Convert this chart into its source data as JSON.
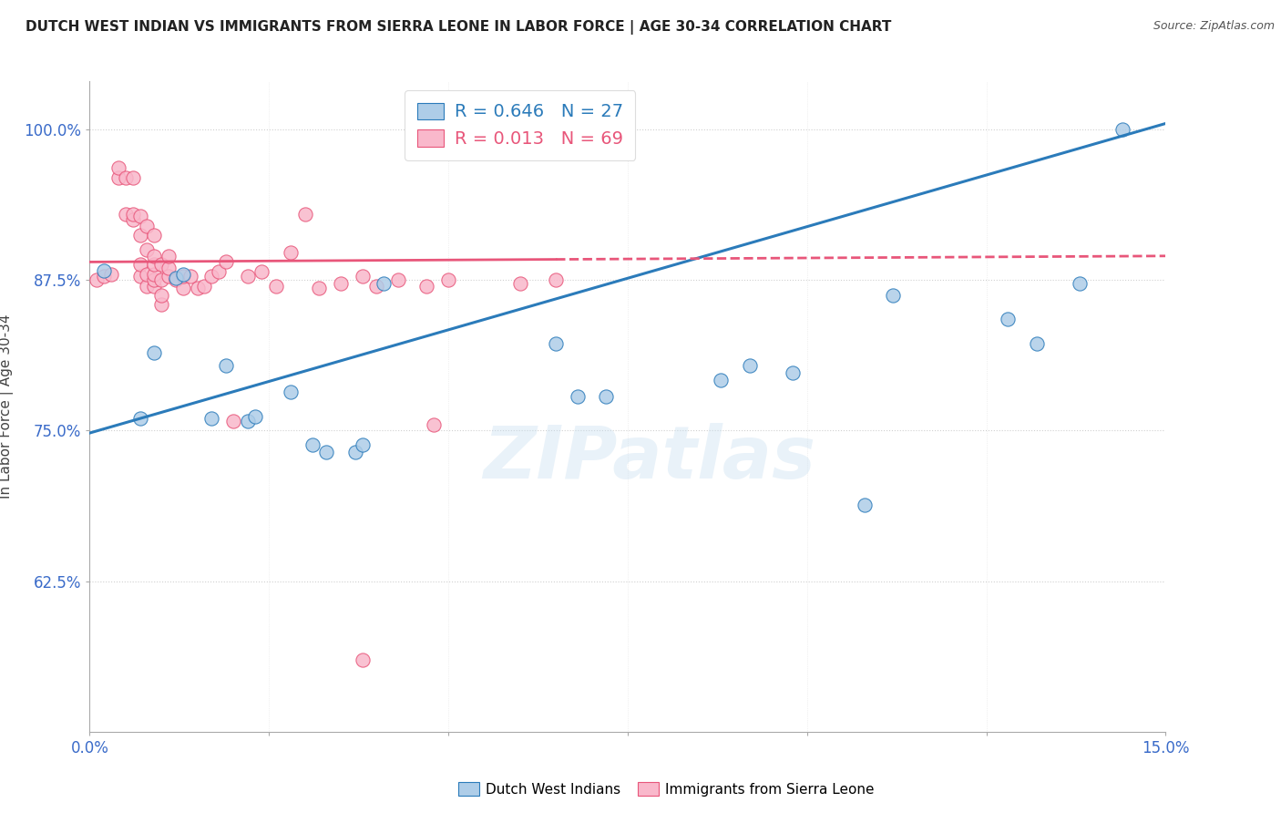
{
  "title": "DUTCH WEST INDIAN VS IMMIGRANTS FROM SIERRA LEONE IN LABOR FORCE | AGE 30-34 CORRELATION CHART",
  "source": "Source: ZipAtlas.com",
  "ylabel_label": "In Labor Force | Age 30-34",
  "xmin": 0.0,
  "xmax": 0.15,
  "ymin": 0.5,
  "ymax": 1.04,
  "yticks": [
    0.625,
    0.75,
    0.875,
    1.0
  ],
  "ytick_labels": [
    "62.5%",
    "75.0%",
    "87.5%",
    "100.0%"
  ],
  "xticks": [
    0.0,
    0.025,
    0.05,
    0.075,
    0.1,
    0.125,
    0.15
  ],
  "xtick_labels": [
    "0.0%",
    "",
    "",
    "",
    "",
    "",
    "15.0%"
  ],
  "blue_R": 0.646,
  "blue_N": 27,
  "pink_R": 0.013,
  "pink_N": 69,
  "blue_color": "#aecde8",
  "pink_color": "#f9b8cb",
  "blue_line_color": "#2b7bba",
  "pink_line_color": "#e8567a",
  "grid_color": "#d0d0d0",
  "axis_color": "#3a6bc9",
  "blue_scatter_x": [
    0.002,
    0.007,
    0.009,
    0.012,
    0.013,
    0.017,
    0.019,
    0.022,
    0.023,
    0.028,
    0.031,
    0.033,
    0.037,
    0.038,
    0.041,
    0.065,
    0.068,
    0.072,
    0.088,
    0.092,
    0.098,
    0.108,
    0.112,
    0.128,
    0.132,
    0.138,
    0.144
  ],
  "blue_scatter_y": [
    0.883,
    0.76,
    0.815,
    0.877,
    0.88,
    0.76,
    0.804,
    0.758,
    0.762,
    0.782,
    0.738,
    0.732,
    0.732,
    0.738,
    0.872,
    0.822,
    0.778,
    0.778,
    0.792,
    0.804,
    0.798,
    0.688,
    0.862,
    0.843,
    0.822,
    0.872,
    1.0
  ],
  "pink_scatter_x": [
    0.001,
    0.002,
    0.003,
    0.004,
    0.004,
    0.005,
    0.005,
    0.006,
    0.006,
    0.006,
    0.007,
    0.007,
    0.007,
    0.007,
    0.008,
    0.008,
    0.008,
    0.008,
    0.009,
    0.009,
    0.009,
    0.009,
    0.009,
    0.009,
    0.01,
    0.01,
    0.01,
    0.01,
    0.011,
    0.011,
    0.011,
    0.012,
    0.013,
    0.013,
    0.014,
    0.015,
    0.016,
    0.017,
    0.018,
    0.019,
    0.02,
    0.022,
    0.024,
    0.026,
    0.028,
    0.03,
    0.032,
    0.035,
    0.038,
    0.04,
    0.043,
    0.047,
    0.048,
    0.05,
    0.06,
    0.065,
    0.038
  ],
  "pink_scatter_y": [
    0.875,
    0.878,
    0.88,
    0.96,
    0.968,
    0.96,
    0.93,
    0.925,
    0.96,
    0.93,
    0.878,
    0.888,
    0.912,
    0.928,
    0.87,
    0.88,
    0.9,
    0.92,
    0.87,
    0.875,
    0.88,
    0.888,
    0.895,
    0.912,
    0.855,
    0.862,
    0.875,
    0.888,
    0.878,
    0.885,
    0.895,
    0.875,
    0.868,
    0.878,
    0.878,
    0.868,
    0.87,
    0.878,
    0.882,
    0.89,
    0.758,
    0.878,
    0.882,
    0.87,
    0.898,
    0.93,
    0.868,
    0.872,
    0.878,
    0.87,
    0.875,
    0.87,
    0.755,
    0.875,
    0.872,
    0.875,
    0.56
  ],
  "blue_trend_x0": 0.0,
  "blue_trend_y0": 0.748,
  "blue_trend_x1": 0.15,
  "blue_trend_y1": 1.005,
  "pink_trend_x0": 0.0,
  "pink_trend_y0": 0.89,
  "pink_trend_x1": 0.15,
  "pink_trend_y1": 0.895
}
